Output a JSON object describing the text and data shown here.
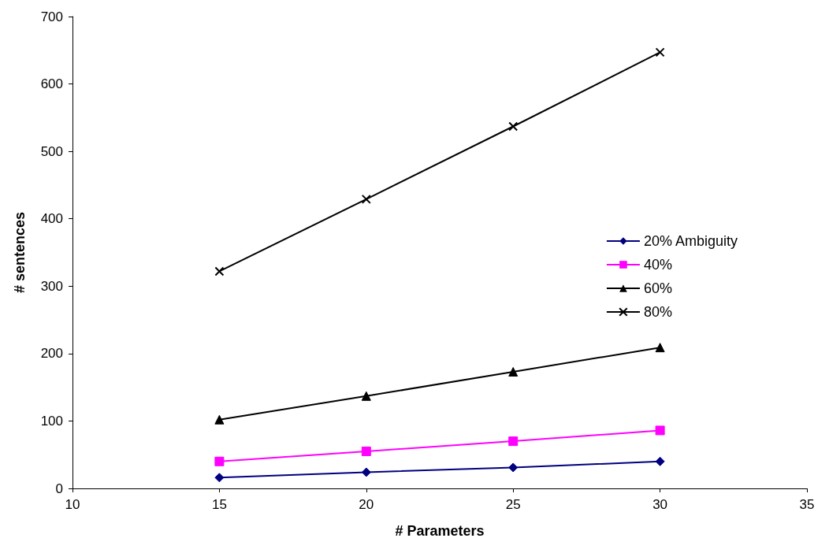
{
  "chart_data": {
    "type": "line",
    "xlabel": "# Parameters",
    "ylabel": "# sentences",
    "x": [
      15,
      20,
      25,
      30
    ],
    "series": [
      {
        "name": "20% Ambiguity",
        "color": "#000080",
        "marker": "diamond",
        "values": [
          16,
          24,
          31,
          40
        ]
      },
      {
        "name": "40%",
        "color": "#ff00ff",
        "marker": "square",
        "values": [
          40,
          55,
          70,
          86
        ]
      },
      {
        "name": "60%",
        "color": "#000000",
        "marker": "triangle",
        "values": [
          102,
          137,
          173,
          209
        ]
      },
      {
        "name": "80%",
        "color": "#000000",
        "marker": "cross",
        "values": [
          322,
          429,
          537,
          647
        ]
      }
    ],
    "xlim": [
      10,
      35
    ],
    "xticks": [
      10,
      15,
      20,
      25,
      30,
      35
    ],
    "ylim": [
      0,
      700
    ],
    "yticks": [
      0,
      100,
      200,
      300,
      400,
      500,
      600,
      700
    ],
    "grid": false,
    "legend": "right",
    "line_style": "solid"
  }
}
